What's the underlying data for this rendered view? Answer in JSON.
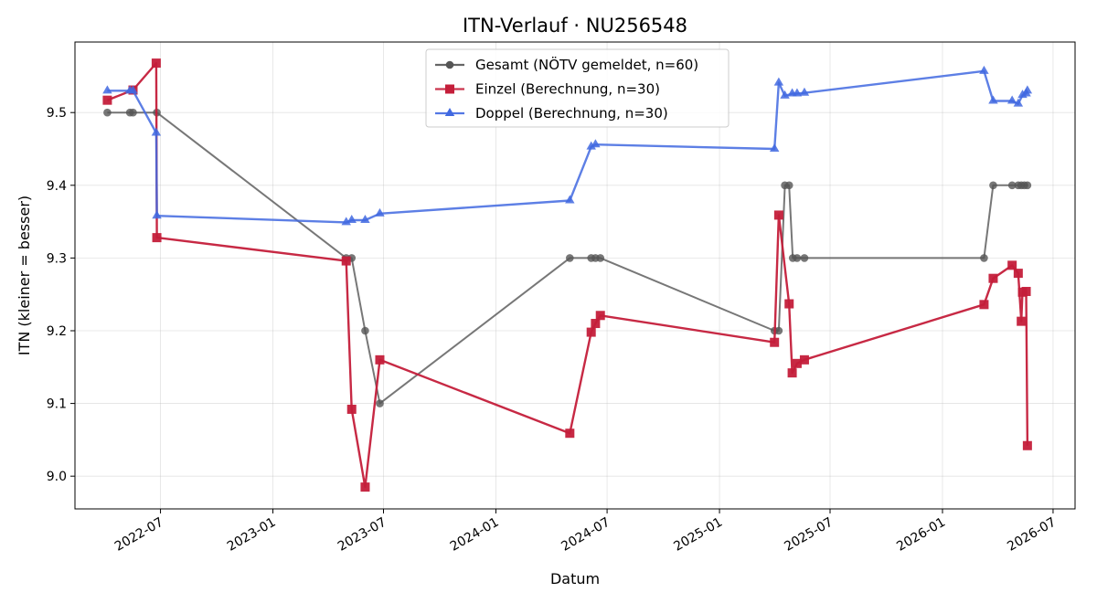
{
  "chart_data": {
    "type": "line",
    "title": "ITN-Verlauf · NU256548",
    "xlabel": "Datum",
    "ylabel": "ITN  (kleiner = besser)",
    "x_type": "date",
    "xlim": [
      "2022-02-11",
      "2026-08-06"
    ],
    "ylim": [
      8.955,
      9.597
    ],
    "yticks": [
      9.0,
      9.1,
      9.2,
      9.3,
      9.4,
      9.5
    ],
    "ytick_labels": [
      "9.0",
      "9.1",
      "9.2",
      "9.3",
      "9.4",
      "9.5"
    ],
    "xticks": [
      "2022-07-01",
      "2023-01-01",
      "2023-07-01",
      "2024-01-01",
      "2024-07-01",
      "2025-01-01",
      "2025-07-01",
      "2026-01-01",
      "2026-07-01"
    ],
    "xtick_labels": [
      "2022-07",
      "2023-01",
      "2023-07",
      "2024-01",
      "2024-07",
      "2025-01",
      "2025-07",
      "2026-01",
      "2026-07"
    ],
    "grid": true,
    "legend_position": "top-center",
    "series": [
      {
        "name": "Gesamt (NÖTV gemeldet, n=60)",
        "color": "#555555",
        "marker": "circle",
        "x": [
          "2022-04-05",
          "2022-05-12",
          "2022-05-17",
          "2022-06-25",
          "2023-05-01",
          "2023-05-10",
          "2023-06-01",
          "2023-06-25",
          "2024-05-01",
          "2024-06-05",
          "2024-06-12",
          "2024-06-20",
          "2025-04-01",
          "2025-04-08",
          "2025-04-18",
          "2025-04-25",
          "2025-05-01",
          "2025-05-08",
          "2025-05-20",
          "2026-03-10",
          "2026-03-25",
          "2026-04-25",
          "2026-05-05",
          "2026-05-10",
          "2026-05-15",
          "2026-05-20"
        ],
        "y": [
          9.5,
          9.5,
          9.5,
          9.5,
          9.3,
          9.3,
          9.2,
          9.1,
          9.3,
          9.3,
          9.3,
          9.3,
          9.2,
          9.2,
          9.4,
          9.4,
          9.3,
          9.3,
          9.3,
          9.3,
          9.4,
          9.4,
          9.4,
          9.4,
          9.4,
          9.4
        ]
      },
      {
        "name": "Einzel (Berechnung, n=30)",
        "color": "#c41e3a",
        "marker": "square",
        "x": [
          "2022-04-05",
          "2022-05-17",
          "2022-06-24",
          "2022-06-25",
          "2023-05-01",
          "2023-05-10",
          "2023-06-01",
          "2023-06-25",
          "2024-05-01",
          "2024-06-05",
          "2024-06-12",
          "2024-06-20",
          "2025-04-01",
          "2025-04-08",
          "2025-04-25",
          "2025-04-30",
          "2025-05-08",
          "2025-05-20",
          "2026-03-10",
          "2026-03-25",
          "2026-04-25",
          "2026-05-05",
          "2026-05-10",
          "2026-05-12",
          "2026-05-18",
          "2026-05-20"
        ],
        "y": [
          9.517,
          9.531,
          9.568,
          9.328,
          9.296,
          9.092,
          8.985,
          9.16,
          9.059,
          9.198,
          9.21,
          9.221,
          9.184,
          9.359,
          9.237,
          9.142,
          9.155,
          9.16,
          9.236,
          9.272,
          9.29,
          9.279,
          9.213,
          9.253,
          9.254,
          9.042
        ]
      },
      {
        "name": "Doppel (Berechnung, n=30)",
        "color": "#4169e1",
        "marker": "triangle",
        "x": [
          "2022-04-05",
          "2022-05-12",
          "2022-05-17",
          "2022-06-24",
          "2022-06-25",
          "2023-05-01",
          "2023-05-10",
          "2023-06-01",
          "2023-06-25",
          "2024-05-01",
          "2024-06-05",
          "2024-06-12",
          "2025-04-01",
          "2025-04-08",
          "2025-04-18",
          "2025-04-30",
          "2025-05-08",
          "2025-05-20",
          "2026-03-10",
          "2026-03-25",
          "2026-04-25",
          "2026-05-05",
          "2026-05-12",
          "2026-05-18",
          "2026-05-20"
        ],
        "y": [
          9.53,
          9.53,
          9.53,
          9.472,
          9.358,
          9.349,
          9.352,
          9.352,
          9.361,
          9.379,
          9.453,
          9.456,
          9.45,
          9.541,
          9.523,
          9.526,
          9.526,
          9.527,
          9.557,
          9.516,
          9.516,
          9.512,
          9.524,
          9.526,
          9.53
        ]
      }
    ]
  }
}
